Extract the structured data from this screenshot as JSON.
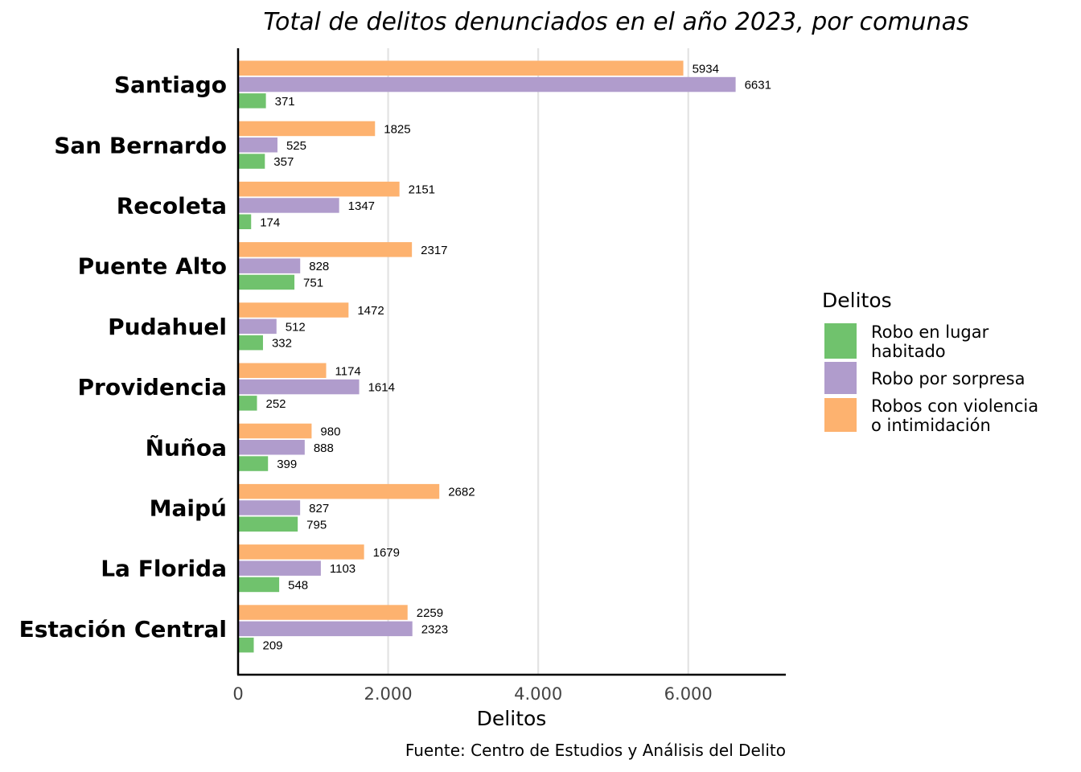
{
  "chart_data": {
    "type": "bar",
    "orientation": "horizontal",
    "title": "Total de delitos denunciados en el año 2023, por comunas",
    "xlabel": "Delitos",
    "ylabel": "",
    "caption": "Fuente: Centro de Estudios y Análisis del Delito",
    "xlim": [
      0,
      7300
    ],
    "x_ticks": [
      0,
      2000,
      4000,
      6000
    ],
    "x_tick_labels": [
      "0",
      "2.000",
      "4.000",
      "6.000"
    ],
    "grid": "vertical major gridlines",
    "legend_position": "right",
    "legend_title": "Delitos",
    "categories": [
      "Santiago",
      "San Bernardo",
      "Recoleta",
      "Puente Alto",
      "Pudahuel",
      "Providencia",
      "Ñuñoa",
      "Maipú",
      "La Florida",
      "Estación Central"
    ],
    "series": [
      {
        "name": "Robos con violencia o intimidación",
        "legend_lines": [
          "Robos con violencia",
          "o intimidación"
        ],
        "color": "#FDB26F",
        "values": [
          5934,
          1825,
          2151,
          2317,
          1472,
          1174,
          980,
          2682,
          1679,
          2259
        ]
      },
      {
        "name": "Robo por sorpresa",
        "legend_lines": [
          "Robo por sorpresa"
        ],
        "color": "#B09CCC",
        "values": [
          6631,
          525,
          1347,
          828,
          512,
          1614,
          888,
          827,
          1103,
          2323
        ]
      },
      {
        "name": "Robo en lugar habitado",
        "legend_lines": [
          "Robo en lugar",
          "habitado"
        ],
        "color": "#70C26D",
        "values": [
          371,
          357,
          174,
          751,
          332,
          252,
          399,
          795,
          548,
          209
        ]
      }
    ],
    "legend_order": [
      2,
      1,
      0
    ]
  }
}
